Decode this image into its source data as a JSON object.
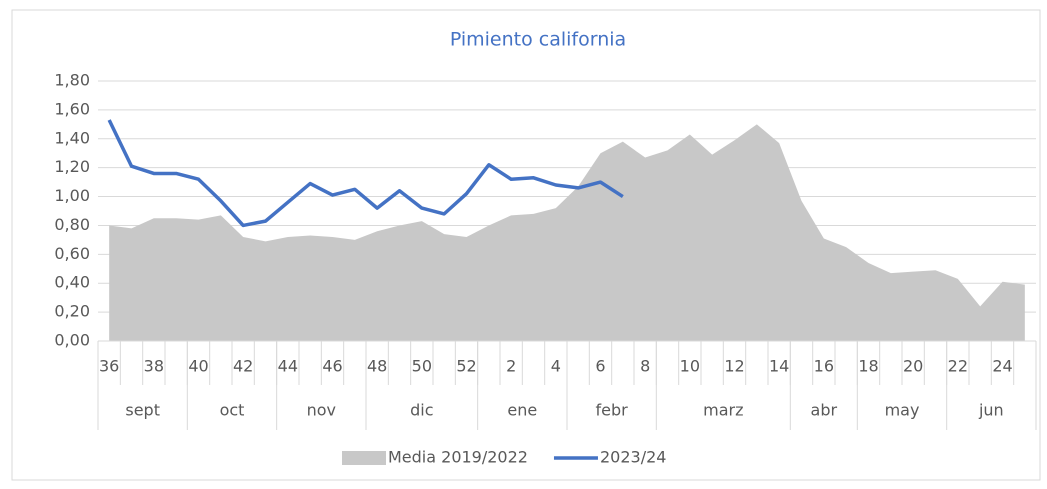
{
  "chart_data": {
    "type": "area_line",
    "title": "Pimiento california",
    "categories": [
      "36",
      null,
      "38",
      null,
      "40",
      null,
      "42",
      null,
      "44",
      null,
      "46",
      null,
      "48",
      null,
      "50",
      null,
      "52",
      null,
      "2",
      null,
      "4",
      null,
      "6",
      null,
      "8",
      null,
      "10",
      null,
      "12",
      null,
      "14",
      null,
      "16",
      null,
      "18",
      null,
      "20",
      null,
      "22",
      null,
      "24",
      null
    ],
    "month_groups": [
      {
        "label": "sept",
        "weeks": 4
      },
      {
        "label": "oct",
        "weeks": 4
      },
      {
        "label": "nov",
        "weeks": 4
      },
      {
        "label": "dic",
        "weeks": 5
      },
      {
        "label": "ene",
        "weeks": 4
      },
      {
        "label": "febr",
        "weeks": 4
      },
      {
        "label": "marz",
        "weeks": 6
      },
      {
        "label": "abr",
        "weeks": 3
      },
      {
        "label": "may",
        "weeks": 4
      },
      {
        "label": "jun",
        "weeks": 4
      }
    ],
    "series": [
      {
        "name": "Media 2019/2022",
        "kind": "area",
        "color": "#c8c8c8",
        "values": [
          0.8,
          0.78,
          0.85,
          0.85,
          0.84,
          0.87,
          0.72,
          0.69,
          0.72,
          0.73,
          0.72,
          0.7,
          0.76,
          0.8,
          0.83,
          0.74,
          0.72,
          0.8,
          0.87,
          0.88,
          0.92,
          1.07,
          1.3,
          1.38,
          1.27,
          1.32,
          1.43,
          1.29,
          1.39,
          1.5,
          1.37,
          0.97,
          0.71,
          0.65,
          0.54,
          0.47,
          0.48,
          0.49,
          0.43,
          0.24,
          0.41,
          0.39
        ]
      },
      {
        "name": "2023/24",
        "kind": "line",
        "color": "#4472c4",
        "values": [
          1.53,
          1.21,
          1.16,
          1.16,
          1.12,
          0.97,
          0.8,
          0.83,
          0.96,
          1.09,
          1.01,
          1.05,
          0.92,
          1.04,
          0.92,
          0.88,
          1.02,
          1.22,
          1.12,
          1.13,
          1.08,
          1.06,
          1.1,
          1.0,
          null,
          null,
          null,
          null,
          null,
          null,
          null,
          null,
          null,
          null,
          null,
          null,
          null,
          null,
          null,
          null,
          null,
          null
        ]
      }
    ],
    "ylim": [
      0,
      1.8
    ],
    "yticks": [
      {
        "value": 0,
        "label": "0,00"
      },
      {
        "value": 0.2,
        "label": "0,20"
      },
      {
        "value": 0.4,
        "label": "0,40"
      },
      {
        "value": 0.6,
        "label": "0,60"
      },
      {
        "value": 0.8,
        "label": "0,80"
      },
      {
        "value": 1.0,
        "label": "1,00"
      },
      {
        "value": 1.2,
        "label": "1,20"
      },
      {
        "value": 1.4,
        "label": "1,40"
      },
      {
        "value": 1.6,
        "label": "1,60"
      },
      {
        "value": 1.8,
        "label": "1,80"
      }
    ],
    "grid": true
  }
}
